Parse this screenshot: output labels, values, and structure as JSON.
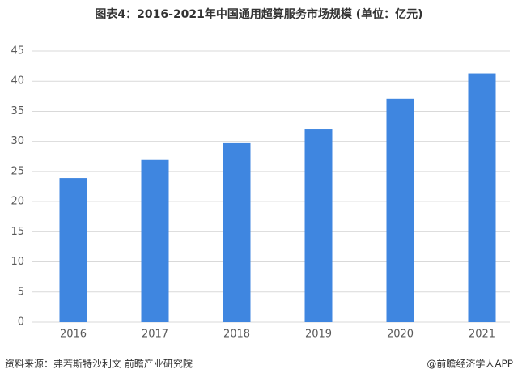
{
  "chart_data": {
    "type": "bar",
    "title": "图表4：2016-2021年中国通用超算服务市场规模 (单位：亿元)",
    "categories": [
      "2016",
      "2017",
      "2018",
      "2019",
      "2020",
      "2021"
    ],
    "values": [
      23.9,
      26.9,
      29.7,
      32.1,
      37.1,
      41.3
    ],
    "color": "#3f86e0",
    "ylim": [
      0,
      45
    ],
    "yticks": [
      0,
      5,
      10,
      15,
      20,
      25,
      30,
      35,
      40,
      45
    ],
    "grid": true,
    "source": "资料来源：弗若斯特沙利文 前瞻产业研究院",
    "credit": "@前瞻经济学人APP"
  }
}
